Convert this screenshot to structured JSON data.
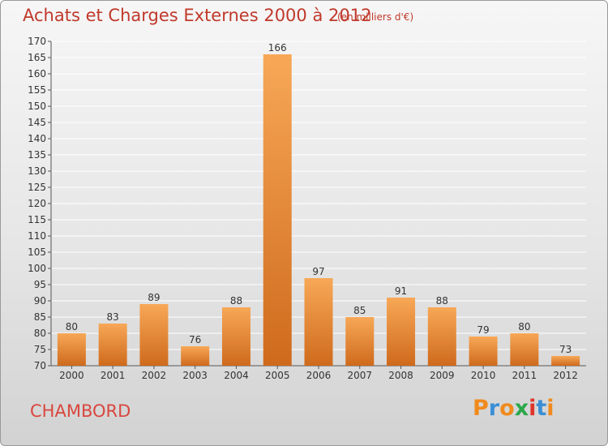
{
  "page": {
    "title": "Achats et Charges Externes 2000 à 2012",
    "subtitle": "(en milliers d'€)",
    "commune": "CHAMBORD",
    "logo": "Proxiti"
  },
  "colors": {
    "title": "#c0392b",
    "bar_light": "#f7a857",
    "bar_dark": "#cf6a1c",
    "grid": "#ffffff",
    "logo_letters": [
      "#f08a1c",
      "#3a8fd6",
      "#f08a1c",
      "#2aa84a",
      "#e0352b",
      "#3a8fd6",
      "#f08a1c"
    ]
  },
  "chart_data": {
    "type": "bar",
    "title": "Achats et Charges Externes 2000 à 2012",
    "subtitle": "(en milliers d'€)",
    "categories": [
      "2000",
      "2001",
      "2002",
      "2003",
      "2004",
      "2005",
      "2006",
      "2007",
      "2008",
      "2009",
      "2010",
      "2011",
      "2012"
    ],
    "values": [
      80,
      83,
      89,
      76,
      88,
      166,
      97,
      85,
      91,
      88,
      79,
      80,
      73
    ],
    "ylim": [
      70,
      170
    ],
    "yticks": [
      70,
      75,
      80,
      85,
      90,
      95,
      100,
      105,
      110,
      115,
      120,
      125,
      130,
      135,
      140,
      145,
      150,
      155,
      160,
      165,
      170
    ],
    "grid": true,
    "legend": "none"
  }
}
